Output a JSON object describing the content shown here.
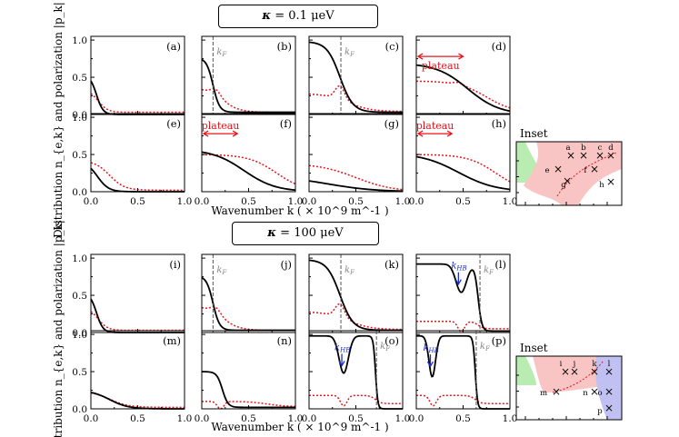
{
  "figure": {
    "group1_label": "κ = 0.1 μeV",
    "group2_label": "κ = 100 μeV",
    "ylabel": "Distribution n_{e,k} and polarization |p_k|",
    "xlabel": "Wavenumber k ( × 10^9 m^-1 )",
    "inset_title": "Inset",
    "plateau_label": "plateau",
    "kF_label": "kF",
    "kHB_label": "kHB"
  },
  "chart_data": {
    "type": "line",
    "xlim": [
      0,
      1.0
    ],
    "ylim": [
      0,
      1.05
    ],
    "xticks": [
      "0.0",
      "0.5",
      "1.0"
    ],
    "yticks": [
      "0.0",
      "0.5",
      "1.0"
    ],
    "xlabel": "Wavenumber k ( × 10^9 m^-1 )",
    "ylabel": "Distribution n_{e,k} and polarization |p_k|",
    "series_legend": [
      {
        "name": "distribution n_e,k",
        "color": "#000000",
        "style": "solid"
      },
      {
        "name": "polarization |p_k|",
        "color": "#e8141c",
        "style": "dotted"
      }
    ],
    "panels": [
      {
        "id": "a",
        "label": "(a)",
        "group": 1,
        "n": {
          "type": "step",
          "y0": 0.53,
          "kc": 0.06,
          "w": 0.035,
          "floor": 0.0
        },
        "p": {
          "type": "step",
          "y0": 0.33,
          "kc": 0.08,
          "w": 0.05,
          "floor": 0.03
        }
      },
      {
        "id": "b",
        "label": "(b)",
        "group": 1,
        "kF": 0.12,
        "n": {
          "type": "step",
          "y0": 0.76,
          "kc": 0.12,
          "w": 0.035,
          "floor": 0.03
        },
        "p": {
          "type": "bump",
          "base": 0.36,
          "amp": 0.08,
          "kp": 0.15,
          "kc": 0.22,
          "w": 0.09,
          "floor": 0.03
        }
      },
      {
        "id": "c",
        "label": "(c)",
        "group": 1,
        "kF": 0.34,
        "n": {
          "type": "step",
          "y0": 0.98,
          "kc": 0.33,
          "w": 0.07,
          "floor": 0.03
        },
        "p": {
          "type": "bump",
          "base": 0.28,
          "amp": 0.18,
          "kp": 0.33,
          "kc": 0.42,
          "w": 0.12,
          "floor": 0.04
        }
      },
      {
        "id": "d",
        "label": "(d)",
        "group": 1,
        "plateau": [
          0.0,
          0.5
        ],
        "n": {
          "type": "step",
          "y0": 0.69,
          "kc": 0.55,
          "w": 0.17,
          "floor": 0.0
        },
        "p": {
          "type": "bump",
          "base": 0.45,
          "amp": 0.03,
          "kp": 0.45,
          "kc": 0.75,
          "w": 0.15,
          "floor": 0.02
        }
      },
      {
        "id": "e",
        "label": "(e)",
        "group": 1,
        "n": {
          "type": "step",
          "y0": 0.41,
          "kc": 0.07,
          "w": 0.06,
          "floor": 0.0
        },
        "p": {
          "type": "step",
          "y0": 0.42,
          "kc": 0.2,
          "w": 0.08,
          "floor": 0.02
        }
      },
      {
        "id": "f",
        "label": "(f)",
        "group": 1,
        "plateau": [
          0.0,
          0.38
        ],
        "n": {
          "type": "step",
          "y0": 0.57,
          "kc": 0.45,
          "w": 0.17,
          "floor": 0.0
        },
        "p": {
          "type": "step",
          "y0": 0.5,
          "kc": 0.8,
          "w": 0.15,
          "floor": 0.0
        }
      },
      {
        "id": "g",
        "label": "(g)",
        "group": 1,
        "n": {
          "type": "step",
          "y0": 0.21,
          "kc": 0.2,
          "w": 0.25,
          "floor": 0.0
        },
        "p": {
          "type": "step",
          "y0": 0.38,
          "kc": 0.5,
          "w": 0.2,
          "floor": 0.0
        }
      },
      {
        "id": "h",
        "label": "(h)",
        "group": 1,
        "plateau": [
          0.0,
          0.38
        ],
        "n": {
          "type": "step",
          "y0": 0.52,
          "kc": 0.45,
          "w": 0.2,
          "floor": 0.0
        },
        "p": {
          "type": "step",
          "y0": 0.5,
          "kc": 0.85,
          "w": 0.15,
          "floor": 0.0
        }
      },
      {
        "id": "i",
        "label": "(i)",
        "group": 2,
        "n": {
          "type": "step",
          "y0": 0.53,
          "kc": 0.06,
          "w": 0.035,
          "floor": 0.0
        },
        "p": {
          "type": "step",
          "y0": 0.33,
          "kc": 0.08,
          "w": 0.05,
          "floor": 0.03
        }
      },
      {
        "id": "j",
        "label": "(j)",
        "group": 2,
        "kF": 0.12,
        "n": {
          "type": "step",
          "y0": 0.76,
          "kc": 0.12,
          "w": 0.035,
          "floor": 0.03
        },
        "p": {
          "type": "bump",
          "base": 0.36,
          "amp": 0.08,
          "kp": 0.15,
          "kc": 0.22,
          "w": 0.09,
          "floor": 0.03
        }
      },
      {
        "id": "k",
        "label": "(k)",
        "group": 2,
        "kF": 0.34,
        "n": {
          "type": "step",
          "y0": 0.98,
          "kc": 0.33,
          "w": 0.07,
          "floor": 0.03
        },
        "p": {
          "type": "bump",
          "base": 0.28,
          "amp": 0.18,
          "kp": 0.33,
          "kc": 0.42,
          "w": 0.12,
          "floor": 0.04
        }
      },
      {
        "id": "l",
        "label": "(l)",
        "group": 2,
        "kF": 0.68,
        "kHB": 0.45,
        "n": {
          "type": "hb",
          "y0": 0.92,
          "kd": 0.48,
          "dd": 0.38,
          "dw": 0.08,
          "kc": 0.66,
          "w": 0.02,
          "floor": 0.02
        },
        "p": {
          "type": "hb",
          "y0": 0.15,
          "kd": 0.48,
          "dd": 0.14,
          "dw": 0.05,
          "kc": 0.66,
          "w": 0.03,
          "floor": 0.05
        }
      },
      {
        "id": "m",
        "label": "(m)",
        "group": 2,
        "n": {
          "type": "step",
          "y0": 0.25,
          "kc": 0.2,
          "w": 0.1,
          "floor": 0.0
        },
        "p": {
          "type": "step",
          "y0": 0.24,
          "kc": 0.2,
          "w": 0.1,
          "floor": 0.02
        }
      },
      {
        "id": "n",
        "label": "(n)",
        "group": 2,
        "n": {
          "type": "step",
          "y0": 0.5,
          "kc": 0.22,
          "w": 0.03,
          "floor": 0.02
        },
        "p": {
          "type": "hb",
          "y0": 0.1,
          "kd": 0.2,
          "dd": 0.1,
          "dw": 0.05,
          "kc": 0.7,
          "w": 0.1,
          "floor": 0.03
        }
      },
      {
        "id": "o",
        "label": "(o)",
        "group": 2,
        "kF": 0.72,
        "kHB": 0.35,
        "n": {
          "type": "hb",
          "y0": 0.98,
          "kd": 0.37,
          "dd": 0.5,
          "dw": 0.07,
          "kc": 0.71,
          "w": 0.012,
          "floor": 0.0
        },
        "p": {
          "type": "hb",
          "y0": 0.18,
          "kd": 0.37,
          "dd": 0.14,
          "dw": 0.05,
          "kc": 0.71,
          "w": 0.03,
          "floor": 0.07
        }
      },
      {
        "id": "p",
        "label": "(p)",
        "group": 2,
        "kF": 0.64,
        "kHB": 0.15,
        "n": {
          "type": "hb",
          "y0": 0.98,
          "kd": 0.17,
          "dd": 0.55,
          "dw": 0.05,
          "kc": 0.63,
          "w": 0.012,
          "floor": 0.0
        },
        "p": {
          "type": "hb",
          "y0": 0.18,
          "kd": 0.18,
          "dd": 0.14,
          "dw": 0.05,
          "kc": 0.63,
          "w": 0.03,
          "floor": 0.07
        }
      }
    ],
    "insets": [
      {
        "title": "Inset",
        "markers": [
          "a",
          "b",
          "c",
          "d",
          "e",
          "f",
          "g",
          "h"
        ]
      },
      {
        "title": "Inset",
        "markers": [
          "i",
          "j",
          "k",
          "l",
          "m",
          "n",
          "o",
          "p"
        ]
      }
    ]
  }
}
